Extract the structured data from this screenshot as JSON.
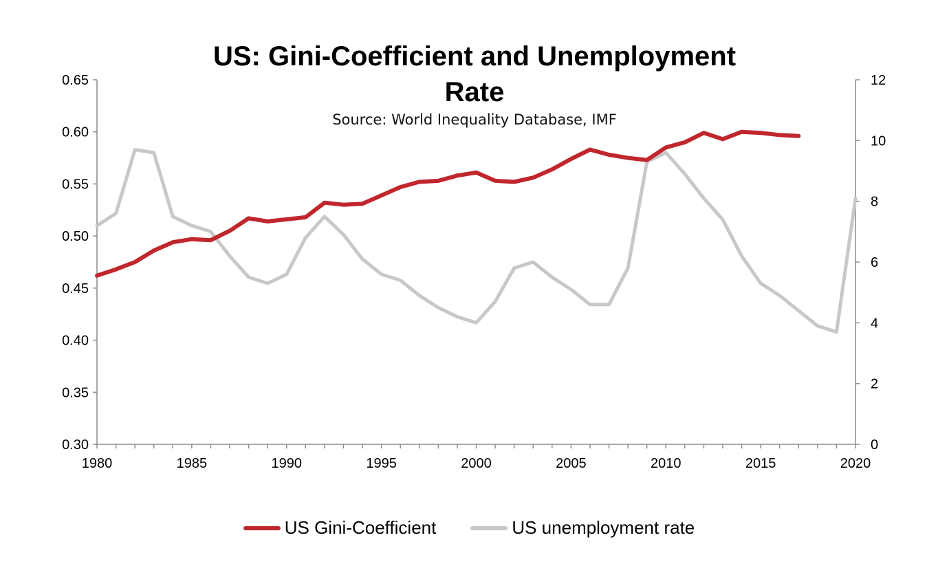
{
  "chart_data": {
    "type": "line",
    "title_line1": "US: Gini-Coefficient and Unemployment",
    "title_line2": "Rate",
    "subtitle": "Source: World Inequality Database, IMF",
    "x": [
      1980,
      1981,
      1982,
      1983,
      1984,
      1985,
      1986,
      1987,
      1988,
      1989,
      1990,
      1991,
      1992,
      1993,
      1994,
      1995,
      1996,
      1997,
      1998,
      1999,
      2000,
      2001,
      2002,
      2003,
      2004,
      2005,
      2006,
      2007,
      2008,
      2009,
      2010,
      2011,
      2012,
      2013,
      2014,
      2015,
      2016,
      2017,
      2018,
      2019,
      2020
    ],
    "x_ticks": [
      1980,
      1985,
      1990,
      1995,
      2000,
      2005,
      2010,
      2015,
      2020
    ],
    "xlim": [
      1980,
      2020
    ],
    "y_left": {
      "lim": [
        0.3,
        0.65
      ],
      "ticks": [
        "0.30",
        "0.35",
        "0.40",
        "0.45",
        "0.50",
        "0.55",
        "0.60",
        "0.65"
      ]
    },
    "y_right": {
      "lim": [
        0,
        12
      ],
      "ticks": [
        "0",
        "2",
        "4",
        "6",
        "8",
        "10",
        "12"
      ]
    },
    "series": [
      {
        "name": "US Gini-Coefficient",
        "axis": "left",
        "color": "#c0272d",
        "values": [
          0.462,
          0.468,
          0.475,
          0.486,
          0.494,
          0.497,
          0.496,
          0.505,
          0.517,
          0.514,
          0.516,
          0.518,
          0.532,
          0.53,
          0.531,
          0.539,
          0.547,
          0.552,
          0.553,
          0.558,
          0.561,
          0.553,
          0.552,
          0.556,
          0.564,
          0.574,
          0.583,
          0.578,
          0.575,
          0.573,
          0.585,
          0.59,
          0.599,
          0.593,
          0.6,
          0.599,
          0.597,
          0.596,
          null,
          null,
          null
        ]
      },
      {
        "name": "US unemployment rate",
        "axis": "right",
        "color": "#c8c8c8",
        "values": [
          7.2,
          7.6,
          9.7,
          9.6,
          7.5,
          7.2,
          7.0,
          6.2,
          5.5,
          5.3,
          5.6,
          6.8,
          7.5,
          6.9,
          6.1,
          5.6,
          5.4,
          4.9,
          4.5,
          4.2,
          4.0,
          4.7,
          5.8,
          6.0,
          5.5,
          5.1,
          4.6,
          4.6,
          5.8,
          9.3,
          9.6,
          8.9,
          8.1,
          7.4,
          6.2,
          5.3,
          4.9,
          4.4,
          3.9,
          3.7,
          8.1
        ]
      }
    ],
    "legend": "bottom-center",
    "grid": false
  }
}
